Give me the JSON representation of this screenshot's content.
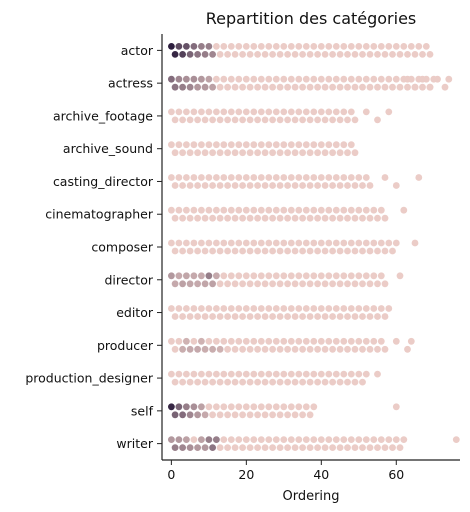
{
  "chart_data": {
    "type": "scatter",
    "subtype": "swarm",
    "title": "Repartition des catégories",
    "xlabel": "Ordering",
    "ylabel": "",
    "xlim": [
      -2.5,
      77
    ],
    "xticks": [
      0,
      20,
      40,
      60
    ],
    "grid": false,
    "legend": "none",
    "categories": [
      "actor",
      "actress",
      "archive_footage",
      "archive_sound",
      "casting_director",
      "cinematographer",
      "composer",
      "director",
      "editor",
      "producer",
      "production_designer",
      "self",
      "writer"
    ],
    "rows": [
      {
        "category": "actor",
        "max": 69,
        "extra": [],
        "dense": [
          [
            0,
            0,
            1
          ],
          [
            1,
            1,
            0.95
          ],
          [
            2,
            0,
            0.75
          ],
          [
            3,
            1,
            0.8
          ],
          [
            4,
            0,
            0.7
          ],
          [
            5,
            1,
            0.6
          ],
          [
            6,
            0,
            0.55
          ],
          [
            7,
            1,
            0.5
          ],
          [
            8,
            0,
            0.45
          ],
          [
            9,
            1,
            0.45
          ],
          [
            10,
            0,
            0.45
          ],
          [
            11,
            1,
            0.4
          ]
        ]
      },
      {
        "category": "actress",
        "max": 70,
        "extra": [
          63,
          65,
          67,
          69,
          71,
          73,
          74
        ],
        "dense": [
          [
            0,
            0,
            0.55
          ],
          [
            1,
            1,
            0.5
          ],
          [
            2,
            0,
            0.4
          ],
          [
            3,
            1,
            0.45
          ],
          [
            4,
            0,
            0.35
          ],
          [
            5,
            1,
            0.4
          ],
          [
            6,
            0,
            0.35
          ],
          [
            7,
            1,
            0.3
          ],
          [
            8,
            0,
            0.3
          ],
          [
            9,
            1,
            0.3
          ],
          [
            10,
            0,
            0.25
          ],
          [
            11,
            1,
            0.25
          ]
        ]
      },
      {
        "category": "archive_footage",
        "max": 49,
        "extra": [
          52,
          55,
          58
        ],
        "dense": []
      },
      {
        "category": "archive_sound",
        "max": 49,
        "extra": [],
        "dense": []
      },
      {
        "category": "casting_director",
        "max": 53,
        "extra": [
          57,
          60,
          66
        ],
        "dense": []
      },
      {
        "category": "cinematographer",
        "max": 57,
        "extra": [
          62
        ],
        "dense": [
          [
            4,
            1,
            0.12
          ],
          [
            6,
            1,
            0.12
          ],
          [
            8,
            1,
            0.12
          ],
          [
            10,
            1,
            0.12
          ]
        ]
      },
      {
        "category": "composer",
        "max": 60,
        "extra": [
          65
        ],
        "dense": [
          [
            4,
            1,
            0.12
          ],
          [
            6,
            1,
            0.12
          ],
          [
            8,
            1,
            0.12
          ],
          [
            10,
            1,
            0.12
          ],
          [
            12,
            1,
            0.12
          ]
        ]
      },
      {
        "category": "director",
        "max": 57,
        "extra": [
          61
        ],
        "dense": [
          [
            0,
            0,
            0.3
          ],
          [
            2,
            0,
            0.2
          ],
          [
            4,
            0,
            0.22
          ],
          [
            6,
            0,
            0.2
          ],
          [
            8,
            0,
            0.2
          ],
          [
            10,
            0,
            0.45
          ],
          [
            12,
            0,
            0.2
          ],
          [
            1,
            1,
            0.2
          ],
          [
            3,
            1,
            0.25
          ],
          [
            5,
            1,
            0.22
          ],
          [
            7,
            1,
            0.2
          ],
          [
            9,
            1,
            0.22
          ],
          [
            11,
            1,
            0.25
          ]
        ]
      },
      {
        "category": "editor",
        "max": 58,
        "extra": [],
        "dense": [
          [
            6,
            1,
            0.12
          ],
          [
            8,
            1,
            0.12
          ],
          [
            10,
            1,
            0.12
          ]
        ]
      },
      {
        "category": "producer",
        "max": 57,
        "extra": [
          60,
          63,
          64
        ],
        "dense": [
          [
            3,
            1,
            0.18
          ],
          [
            5,
            1,
            0.2
          ],
          [
            7,
            1,
            0.2
          ],
          [
            9,
            1,
            0.18
          ],
          [
            11,
            1,
            0.18
          ],
          [
            13,
            1,
            0.15
          ],
          [
            4,
            0,
            0.15
          ],
          [
            8,
            0,
            0.15
          ]
        ]
      },
      {
        "category": "production_designer",
        "max": 52,
        "extra": [
          55
        ],
        "dense": []
      },
      {
        "category": "self",
        "max": 38,
        "extra": [
          60
        ],
        "dense": [
          [
            0,
            0,
            0.95
          ],
          [
            1,
            1,
            0.6
          ],
          [
            2,
            0,
            0.6
          ],
          [
            3,
            1,
            0.55
          ],
          [
            4,
            0,
            0.45
          ],
          [
            5,
            1,
            0.4
          ],
          [
            6,
            0,
            0.35
          ],
          [
            7,
            1,
            0.3
          ],
          [
            8,
            0,
            0.25
          ],
          [
            9,
            1,
            0.2
          ]
        ]
      },
      {
        "category": "writer",
        "max": 62,
        "extra": [
          76
        ],
        "dense": [
          [
            0,
            0,
            0.3
          ],
          [
            2,
            0,
            0.3
          ],
          [
            4,
            0,
            0.25
          ],
          [
            8,
            0,
            0.25
          ],
          [
            10,
            0,
            0.45
          ],
          [
            12,
            0,
            0.45
          ],
          [
            1,
            1,
            0.45
          ],
          [
            3,
            1,
            0.4
          ],
          [
            5,
            1,
            0.35
          ],
          [
            7,
            1,
            0.3
          ],
          [
            9,
            1,
            0.3
          ],
          [
            11,
            1,
            0.5
          ]
        ]
      }
    ]
  }
}
